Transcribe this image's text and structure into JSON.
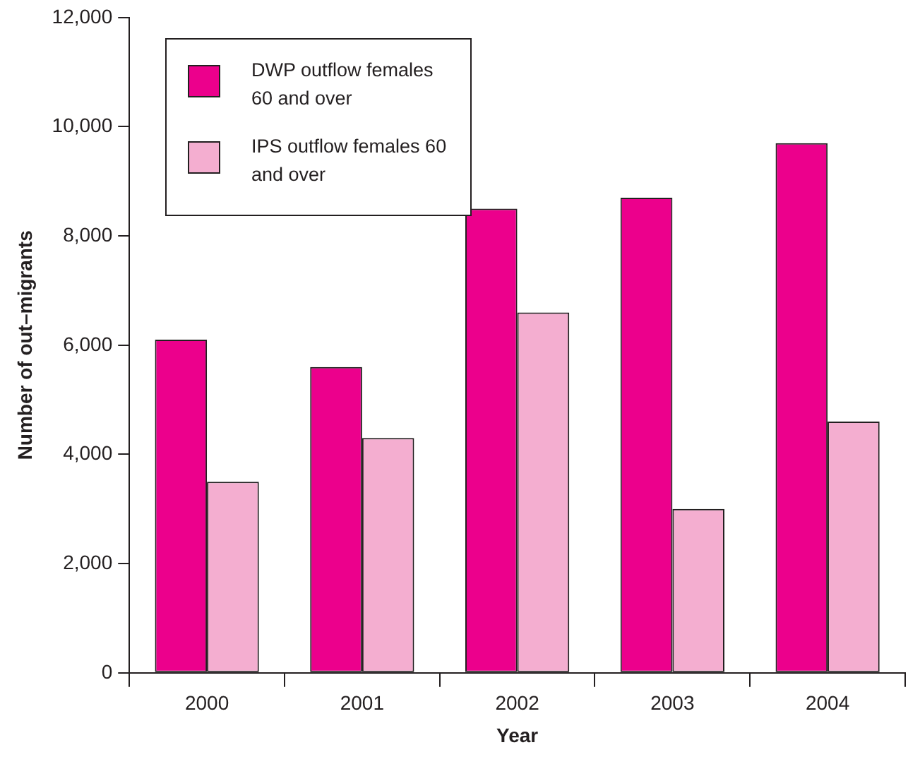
{
  "chart_data": {
    "type": "bar",
    "xlabel": "Year",
    "ylabel": "Number of out–migrants",
    "categories": [
      "2000",
      "2001",
      "2002",
      "2003",
      "2004"
    ],
    "series": [
      {
        "name": "DWP outflow females 60 and over",
        "color": "#ec008c",
        "values": [
          6100,
          5600,
          8500,
          8700,
          9700
        ]
      },
      {
        "name": "IPS outflow females 60 and over",
        "color": "#f4aed0",
        "values": [
          3500,
          4300,
          6600,
          3000,
          4600
        ]
      }
    ],
    "ylim": [
      0,
      12000
    ],
    "yticks": [
      0,
      {
        "value": 2000,
        "label": "2,000"
      },
      {
        "value": 4000,
        "label": "4,000"
      },
      {
        "value": 6000,
        "label": "6,000"
      },
      {
        "value": 8000,
        "label": "8,000"
      },
      {
        "value": 10000,
        "label": "10,000"
      },
      {
        "value": 12000,
        "label": "12,000"
      }
    ],
    "grid": false,
    "legend": "top left"
  }
}
